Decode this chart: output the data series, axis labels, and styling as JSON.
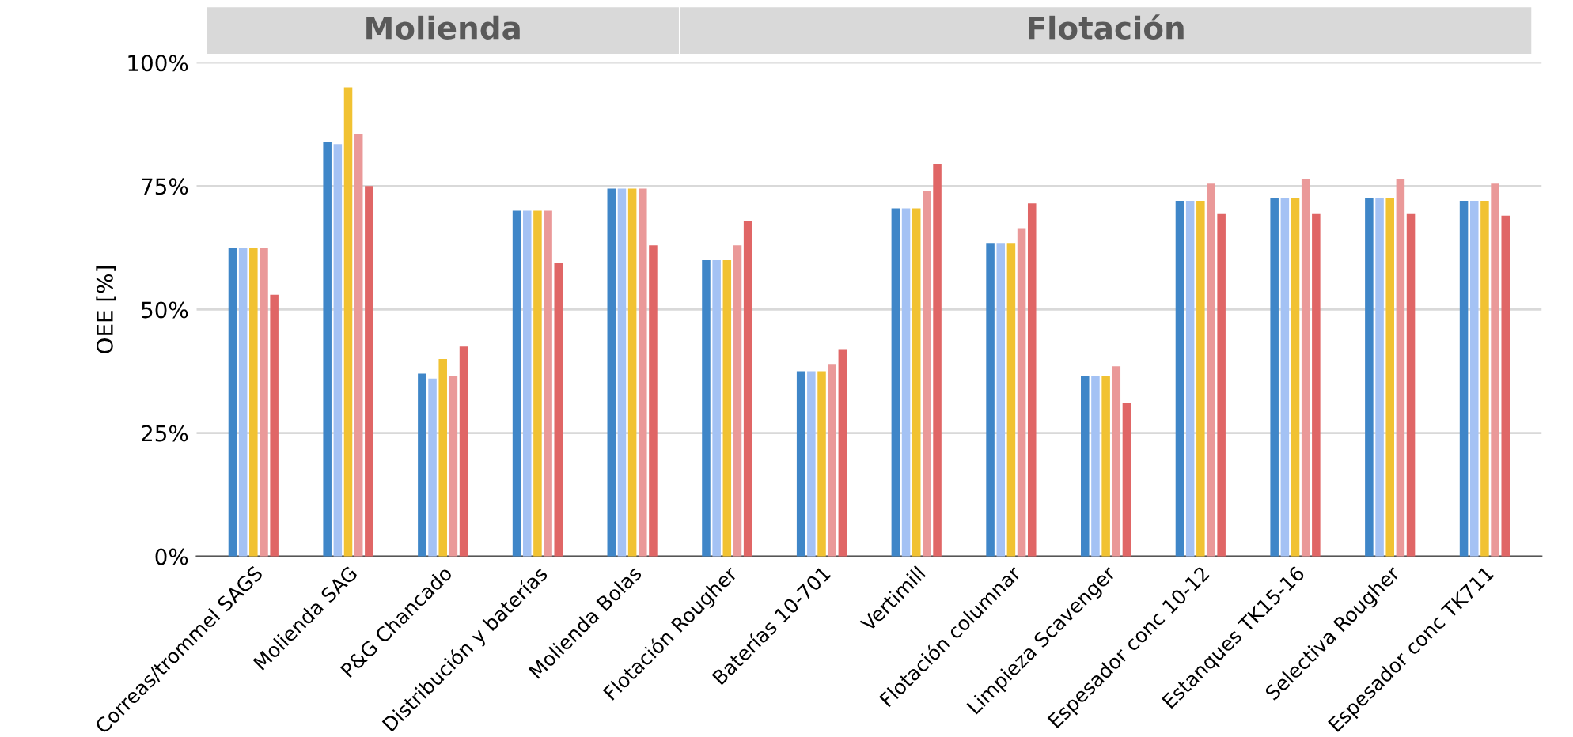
{
  "chart_data": {
    "type": "bar",
    "ylabel": "OEE [%]",
    "categories": [
      "Correas/trommel SAGS",
      "Molienda SAG",
      "P&G Chancado",
      "Distribución y baterías",
      "Molienda Bolas",
      "Flotación Rougher",
      "Baterías 10-701",
      "Vertimill",
      "Flotación columnar",
      "Limpieza Scavenger",
      "Espesador conc 10-12",
      "Estanques TK15-16",
      "Selectiva Rougher",
      "Espesador conc TK711"
    ],
    "series": [
      {
        "color": "#3f86c8",
        "values": [
          62.5,
          84,
          37,
          70,
          74.5,
          60,
          37.5,
          70.5,
          63.5,
          36.5,
          72,
          72.5,
          72.5,
          72
        ]
      },
      {
        "color": "#a4c2f4",
        "values": [
          62.5,
          83.5,
          36,
          70,
          74.5,
          60,
          37.5,
          70.5,
          63.5,
          36.5,
          72,
          72.5,
          72.5,
          72
        ]
      },
      {
        "color": "#f1c232",
        "values": [
          62.5,
          95,
          40,
          70,
          74.5,
          60,
          37.5,
          70.5,
          63.5,
          36.5,
          72,
          72.5,
          72.5,
          72
        ]
      },
      {
        "color": "#ea9999",
        "values": [
          62.5,
          85.5,
          36.5,
          70,
          74.5,
          63,
          39,
          74,
          66.5,
          38.5,
          75.5,
          76.5,
          76.5,
          75.5
        ]
      },
      {
        "color": "#e06666",
        "values": [
          53,
          75,
          42.5,
          59.5,
          63,
          68,
          42,
          79.5,
          71.5,
          31,
          69.5,
          69.5,
          69.5,
          69
        ]
      }
    ],
    "ylim": [
      0,
      100
    ],
    "yticks": [
      {
        "value": 0,
        "label": "0%"
      },
      {
        "value": 25,
        "label": "25%"
      },
      {
        "value": 50,
        "label": "50%"
      },
      {
        "value": 75,
        "label": "75%"
      },
      {
        "value": 100,
        "label": "100%"
      }
    ],
    "grid": "y",
    "legend": false,
    "annotations": [
      "Molienda",
      "Flotación"
    ]
  }
}
